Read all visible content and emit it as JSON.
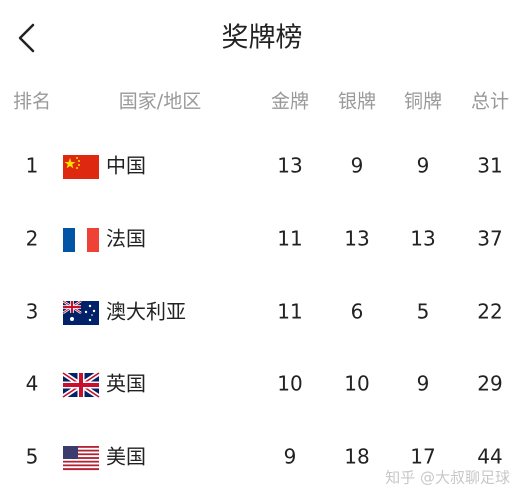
{
  "header": {
    "title": "奖牌榜"
  },
  "table": {
    "columns": [
      "排名",
      "国家/地区",
      "金牌",
      "银牌",
      "铜牌",
      "总计"
    ],
    "rows": [
      [
        1,
        "中国",
        13,
        9,
        9,
        31
      ],
      [
        2,
        "法国",
        11,
        13,
        13,
        37
      ],
      [
        3,
        "澳大利亚",
        11,
        6,
        5,
        22
      ],
      [
        4,
        "英国",
        10,
        10,
        9,
        29
      ],
      [
        5,
        "美国",
        9,
        18,
        17,
        44
      ]
    ]
  },
  "watermark": "知乎 @大叔聊足球"
}
